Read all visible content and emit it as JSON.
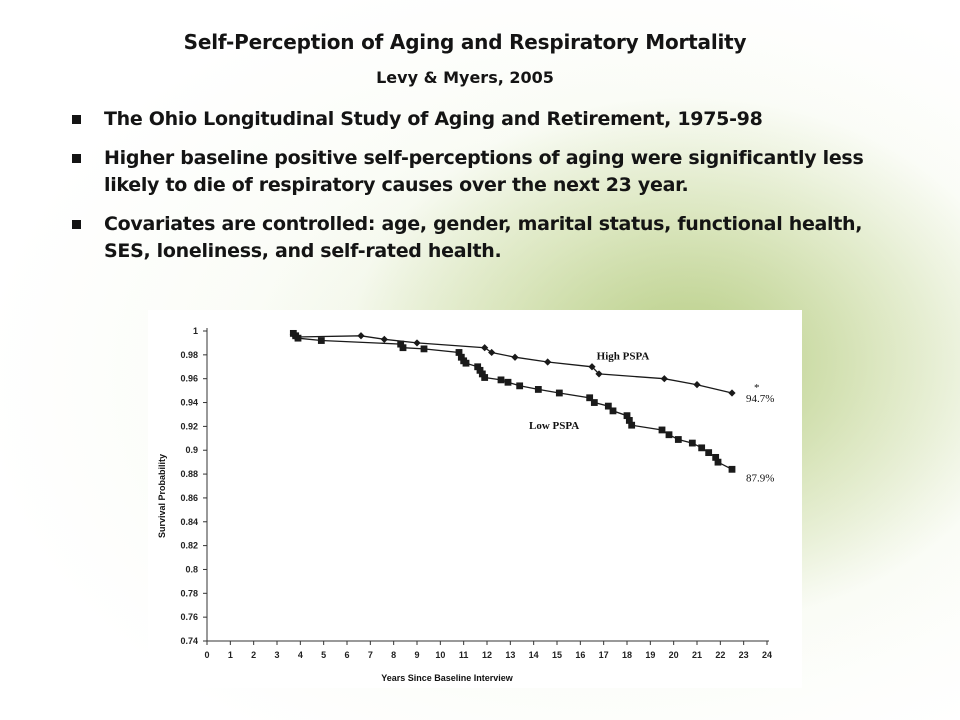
{
  "slide": {
    "title": "Self-Perception of Aging and Respiratory Mortality",
    "subtitle": "Levy & Myers, 2005",
    "bullets": [
      "The Ohio Longitudinal Study of Aging and Retirement, 1975-98",
      "Higher baseline positive self-perceptions of aging were significantly less likely to die of respiratory causes over the next 23 year.",
      "Covariates are controlled: age, gender, marital status, functional health, SES, loneliness, and self-rated health."
    ]
  },
  "chart_data": {
    "type": "line",
    "title": "",
    "xlabel": "Years Since Baseline Interview",
    "ylabel": "Survival Probability",
    "xlim": [
      0,
      24
    ],
    "ylim": [
      0.74,
      1
    ],
    "x_ticks": [
      "0",
      "1",
      "2",
      "3",
      "4",
      "5",
      "6",
      "7",
      "8",
      "9",
      "10",
      "11",
      "12",
      "13",
      "14",
      "15",
      "16",
      "17",
      "18",
      "19",
      "20",
      "21",
      "22",
      "23",
      "24"
    ],
    "y_ticks": [
      "0.74",
      "0.76",
      "0.78",
      "0.8",
      "0.82",
      "0.84",
      "0.86",
      "0.88",
      "0.9",
      "0.92",
      "0.94",
      "0.96",
      "0.98",
      "1"
    ],
    "grid": false,
    "legend": "none",
    "series": [
      {
        "name": "High PSPA",
        "marker": "diamond",
        "end_label": "94.7%",
        "significance": "*",
        "x": [
          3.7,
          3.8,
          6.6,
          7.6,
          9.0,
          11.9,
          12.2,
          13.2,
          14.6,
          16.5,
          16.8,
          19.6,
          21.0,
          22.5
        ],
        "y": [
          0.997,
          0.995,
          0.996,
          0.993,
          0.99,
          0.986,
          0.982,
          0.978,
          0.974,
          0.97,
          0.964,
          0.96,
          0.955,
          0.948
        ]
      },
      {
        "name": "Low PSPA",
        "marker": "square",
        "end_label": "87.9%",
        "x": [
          3.7,
          3.8,
          3.9,
          4.9,
          8.3,
          8.4,
          9.3,
          10.8,
          10.9,
          11.0,
          11.1,
          11.6,
          11.7,
          11.8,
          11.9,
          12.6,
          12.9,
          13.4,
          14.2,
          15.1,
          16.4,
          16.6,
          17.2,
          17.4,
          18.0,
          18.1,
          18.2,
          19.5,
          19.8,
          20.2,
          20.8,
          21.2,
          21.5,
          21.8,
          21.9,
          22.5
        ],
        "y": [
          0.998,
          0.996,
          0.994,
          0.992,
          0.989,
          0.986,
          0.985,
          0.982,
          0.978,
          0.975,
          0.973,
          0.97,
          0.967,
          0.964,
          0.961,
          0.959,
          0.957,
          0.954,
          0.951,
          0.948,
          0.944,
          0.94,
          0.937,
          0.933,
          0.929,
          0.925,
          0.921,
          0.917,
          0.913,
          0.909,
          0.906,
          0.902,
          0.898,
          0.894,
          0.89,
          0.884
        ]
      }
    ]
  }
}
